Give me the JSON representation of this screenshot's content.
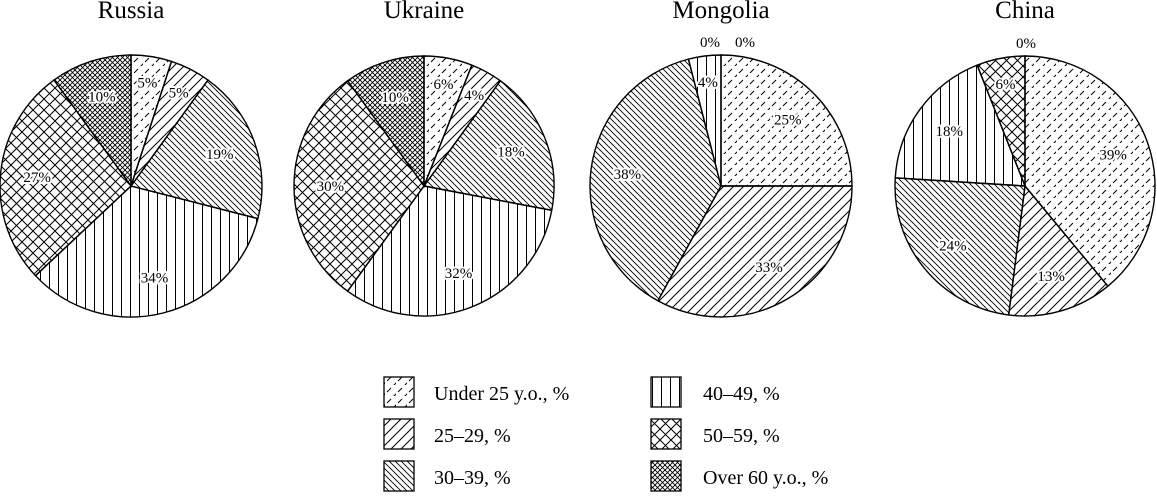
{
  "chart_data": [
    {
      "type": "pie",
      "title": "Russia",
      "slices": [
        {
          "category": "Under 25 y.o., %",
          "value": 5,
          "label": "5%"
        },
        {
          "category": "25–29, %",
          "value": 5,
          "label": "5%"
        },
        {
          "category": "30–39, %",
          "value": 19,
          "label": "19%"
        },
        {
          "category": "40–49, %",
          "value": 34,
          "label": "34%"
        },
        {
          "category": "50–59, %",
          "value": 27,
          "label": "27%"
        },
        {
          "category": "Over 60 y.o., %",
          "value": 10,
          "label": "10%"
        }
      ]
    },
    {
      "type": "pie",
      "title": "Ukraine",
      "slices": [
        {
          "category": "Under 25 y.o., %",
          "value": 6,
          "label": "6%"
        },
        {
          "category": "25–29, %",
          "value": 4,
          "label": "4%"
        },
        {
          "category": "30–39, %",
          "value": 18,
          "label": "18%"
        },
        {
          "category": "40–49, %",
          "value": 32,
          "label": "32%"
        },
        {
          "category": "50–59, %",
          "value": 30,
          "label": "30%"
        },
        {
          "category": "Over 60 y.o., %",
          "value": 10,
          "label": "10%"
        }
      ]
    },
    {
      "type": "pie",
      "title": "Mongolia",
      "slices": [
        {
          "category": "Under 25 y.o., %",
          "value": 25,
          "label": "25%"
        },
        {
          "category": "25–29, %",
          "value": 33,
          "label": "33%"
        },
        {
          "category": "30–39, %",
          "value": 38,
          "label": "38%"
        },
        {
          "category": "40–49, %",
          "value": 4,
          "label": "4%"
        },
        {
          "category": "50–59, %",
          "value": 0,
          "label": "0%"
        },
        {
          "category": "Over 60 y.o., %",
          "value": 0,
          "label": "0%"
        }
      ]
    },
    {
      "type": "pie",
      "title": "China",
      "slices": [
        {
          "category": "Under 25 y.o., %",
          "value": 39,
          "label": "39%"
        },
        {
          "category": "25–29, %",
          "value": 13,
          "label": "13%"
        },
        {
          "category": "30–39, %",
          "value": 24,
          "label": "24%"
        },
        {
          "category": "40–49, %",
          "value": 18,
          "label": "18%"
        },
        {
          "category": "50–59, %",
          "value": 6,
          "label": "6%"
        },
        {
          "category": "Over 60 y.o., %",
          "value": 0,
          "label": "0%"
        }
      ]
    }
  ],
  "legend": {
    "placement": "bottom-center",
    "items": [
      {
        "label": "Under 25 y.o., %",
        "pattern": "dashed-diagonal"
      },
      {
        "label": "40–49, %",
        "pattern": "vertical-lines"
      },
      {
        "label": "25–29, %",
        "pattern": "diagonal-lines"
      },
      {
        "label": "50–59, %",
        "pattern": "crosshatch"
      },
      {
        "label": "30–39, %",
        "pattern": "reverse-diagonal-lines"
      },
      {
        "label": "Over 60 y.o., %",
        "pattern": "dense-crosshatch"
      }
    ]
  }
}
